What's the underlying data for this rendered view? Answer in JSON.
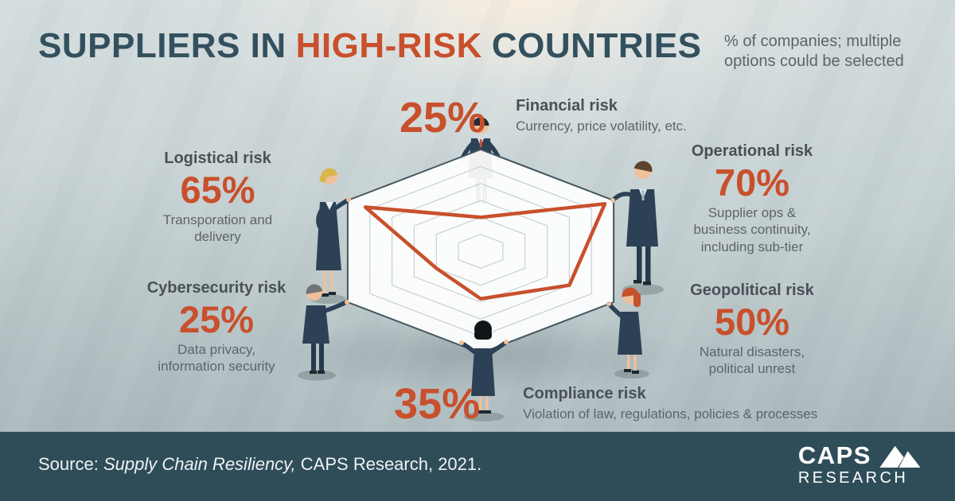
{
  "header": {
    "title": {
      "part1": "SUPPLIERS IN",
      "highlight": "HIGH-RISK",
      "part2": "COUNTRIES"
    },
    "note": {
      "line1": "% of companies; multiple",
      "line2": "options could be selected"
    }
  },
  "risks": [
    {
      "name": "Financial risk",
      "pct": "25%",
      "desc": [
        "Currency, price volatility, etc."
      ]
    },
    {
      "name": "Operational risk",
      "pct": "70%",
      "desc": [
        "Supplier ops &",
        "business continuity,",
        "including sub-tier"
      ]
    },
    {
      "name": "Geopolitical risk",
      "pct": "50%",
      "desc": [
        "Natural disasters,",
        "political unrest"
      ]
    },
    {
      "name": "Compliance risk",
      "pct": "35%",
      "desc": [
        "Violation of law, regulations, policies & processes"
      ]
    },
    {
      "name": "Cybersecurity risk",
      "pct": "25%",
      "desc": [
        "Data privacy,",
        "information security"
      ]
    },
    {
      "name": "Logistical risk",
      "pct": "65%",
      "desc": [
        "Transporation and",
        "delivery"
      ]
    }
  ],
  "chart_data": {
    "type": "radar",
    "categories": [
      "Financial risk",
      "Operational risk",
      "Geopolitical risk",
      "Compliance risk",
      "Cybersecurity risk",
      "Logistical risk"
    ],
    "values": [
      25,
      70,
      50,
      35,
      25,
      65
    ],
    "unit": "% of companies; multiple options could be selected",
    "title": "Suppliers in High-Risk Countries",
    "rlim": [
      0,
      75
    ],
    "rings": 6,
    "grid": true,
    "legend": false,
    "accent_color": "#c8502c",
    "grid_color": "#c9cfd2",
    "fill_color": "rgba(255,255,255,0.93)",
    "edge_color": "#44565f"
  },
  "illustration": {
    "people": [
      "financial-person",
      "operational-person",
      "geopolitical-person",
      "compliance-person",
      "cybersecurity-person",
      "logistical-person"
    ]
  },
  "footer": {
    "source_prefix": "Source:",
    "source_italic": "Supply Chain Resiliency,",
    "source_suffix": "CAPS Research, 2021.",
    "logo": {
      "line1": "CAPS",
      "line2": "RESEARCH"
    }
  }
}
